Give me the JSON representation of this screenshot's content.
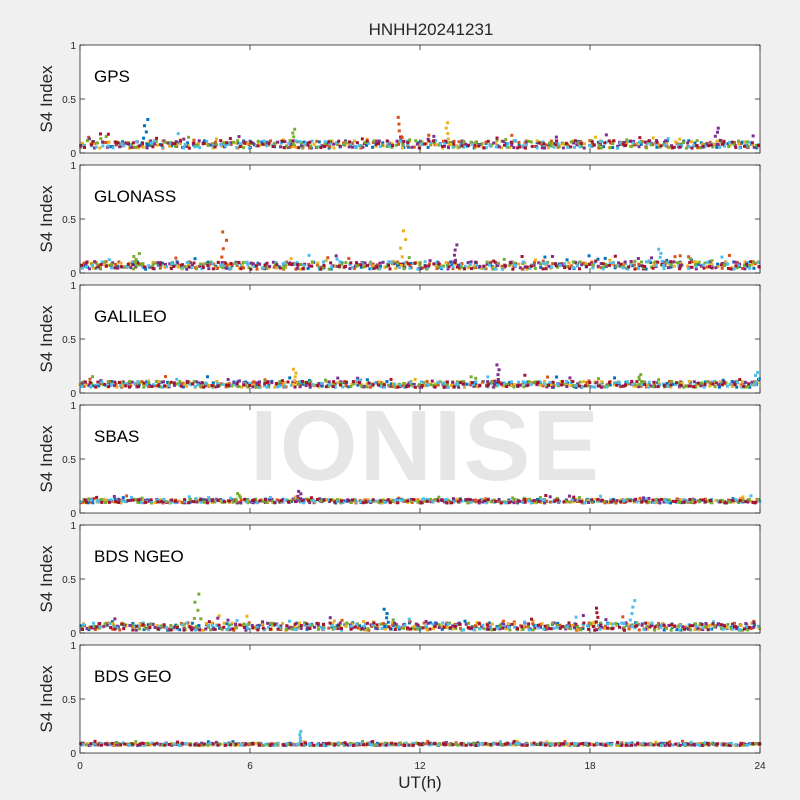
{
  "chart_data": {
    "type": "scatter",
    "title": "HNHH20241231",
    "xlabel": "UT(h)",
    "ylabel": "S4 Index",
    "xlim": [
      0,
      24
    ],
    "ylim": [
      0,
      1
    ],
    "xticks": [
      0,
      6,
      12,
      18,
      24
    ],
    "yticks": [
      0,
      0.5,
      1
    ],
    "ytick_labels": [
      "0",
      "0.5",
      "1"
    ],
    "grid": false,
    "watermark": "IONISE",
    "colors": [
      "#0072BD",
      "#D95319",
      "#EDB120",
      "#7E2F8E",
      "#77AC30",
      "#4DBEEE",
      "#A2142F"
    ],
    "panels": [
      {
        "label": "GPS",
        "baseline": 0.08,
        "noise": 0.05,
        "peaks": [
          [
            2.3,
            0.31
          ],
          [
            11.3,
            0.33
          ],
          [
            13.0,
            0.28
          ],
          [
            22.5,
            0.23
          ],
          [
            7.5,
            0.22
          ]
        ]
      },
      {
        "label": "GLONASS",
        "baseline": 0.07,
        "noise": 0.05,
        "peaks": [
          [
            5.1,
            0.38
          ],
          [
            11.4,
            0.39
          ],
          [
            13.3,
            0.26
          ],
          [
            2.0,
            0.18
          ],
          [
            20.5,
            0.22
          ]
        ]
      },
      {
        "label": "GALILEO",
        "baseline": 0.08,
        "noise": 0.04,
        "peaks": [
          [
            7.6,
            0.22
          ],
          [
            14.7,
            0.26
          ],
          [
            19.8,
            0.17
          ],
          [
            23.9,
            0.19
          ]
        ]
      },
      {
        "label": "SBAS",
        "baseline": 0.11,
        "noise": 0.025,
        "peaks": [
          [
            7.7,
            0.2
          ],
          [
            5.6,
            0.18
          ]
        ]
      },
      {
        "label": "BDS NGEO",
        "baseline": 0.06,
        "noise": 0.05,
        "peaks": [
          [
            4.1,
            0.36
          ],
          [
            19.5,
            0.3
          ],
          [
            18.2,
            0.23
          ],
          [
            10.8,
            0.22
          ]
        ]
      },
      {
        "label": "BDS GEO",
        "baseline": 0.08,
        "noise": 0.015,
        "peaks": [
          [
            7.7,
            0.2
          ]
        ]
      }
    ]
  }
}
